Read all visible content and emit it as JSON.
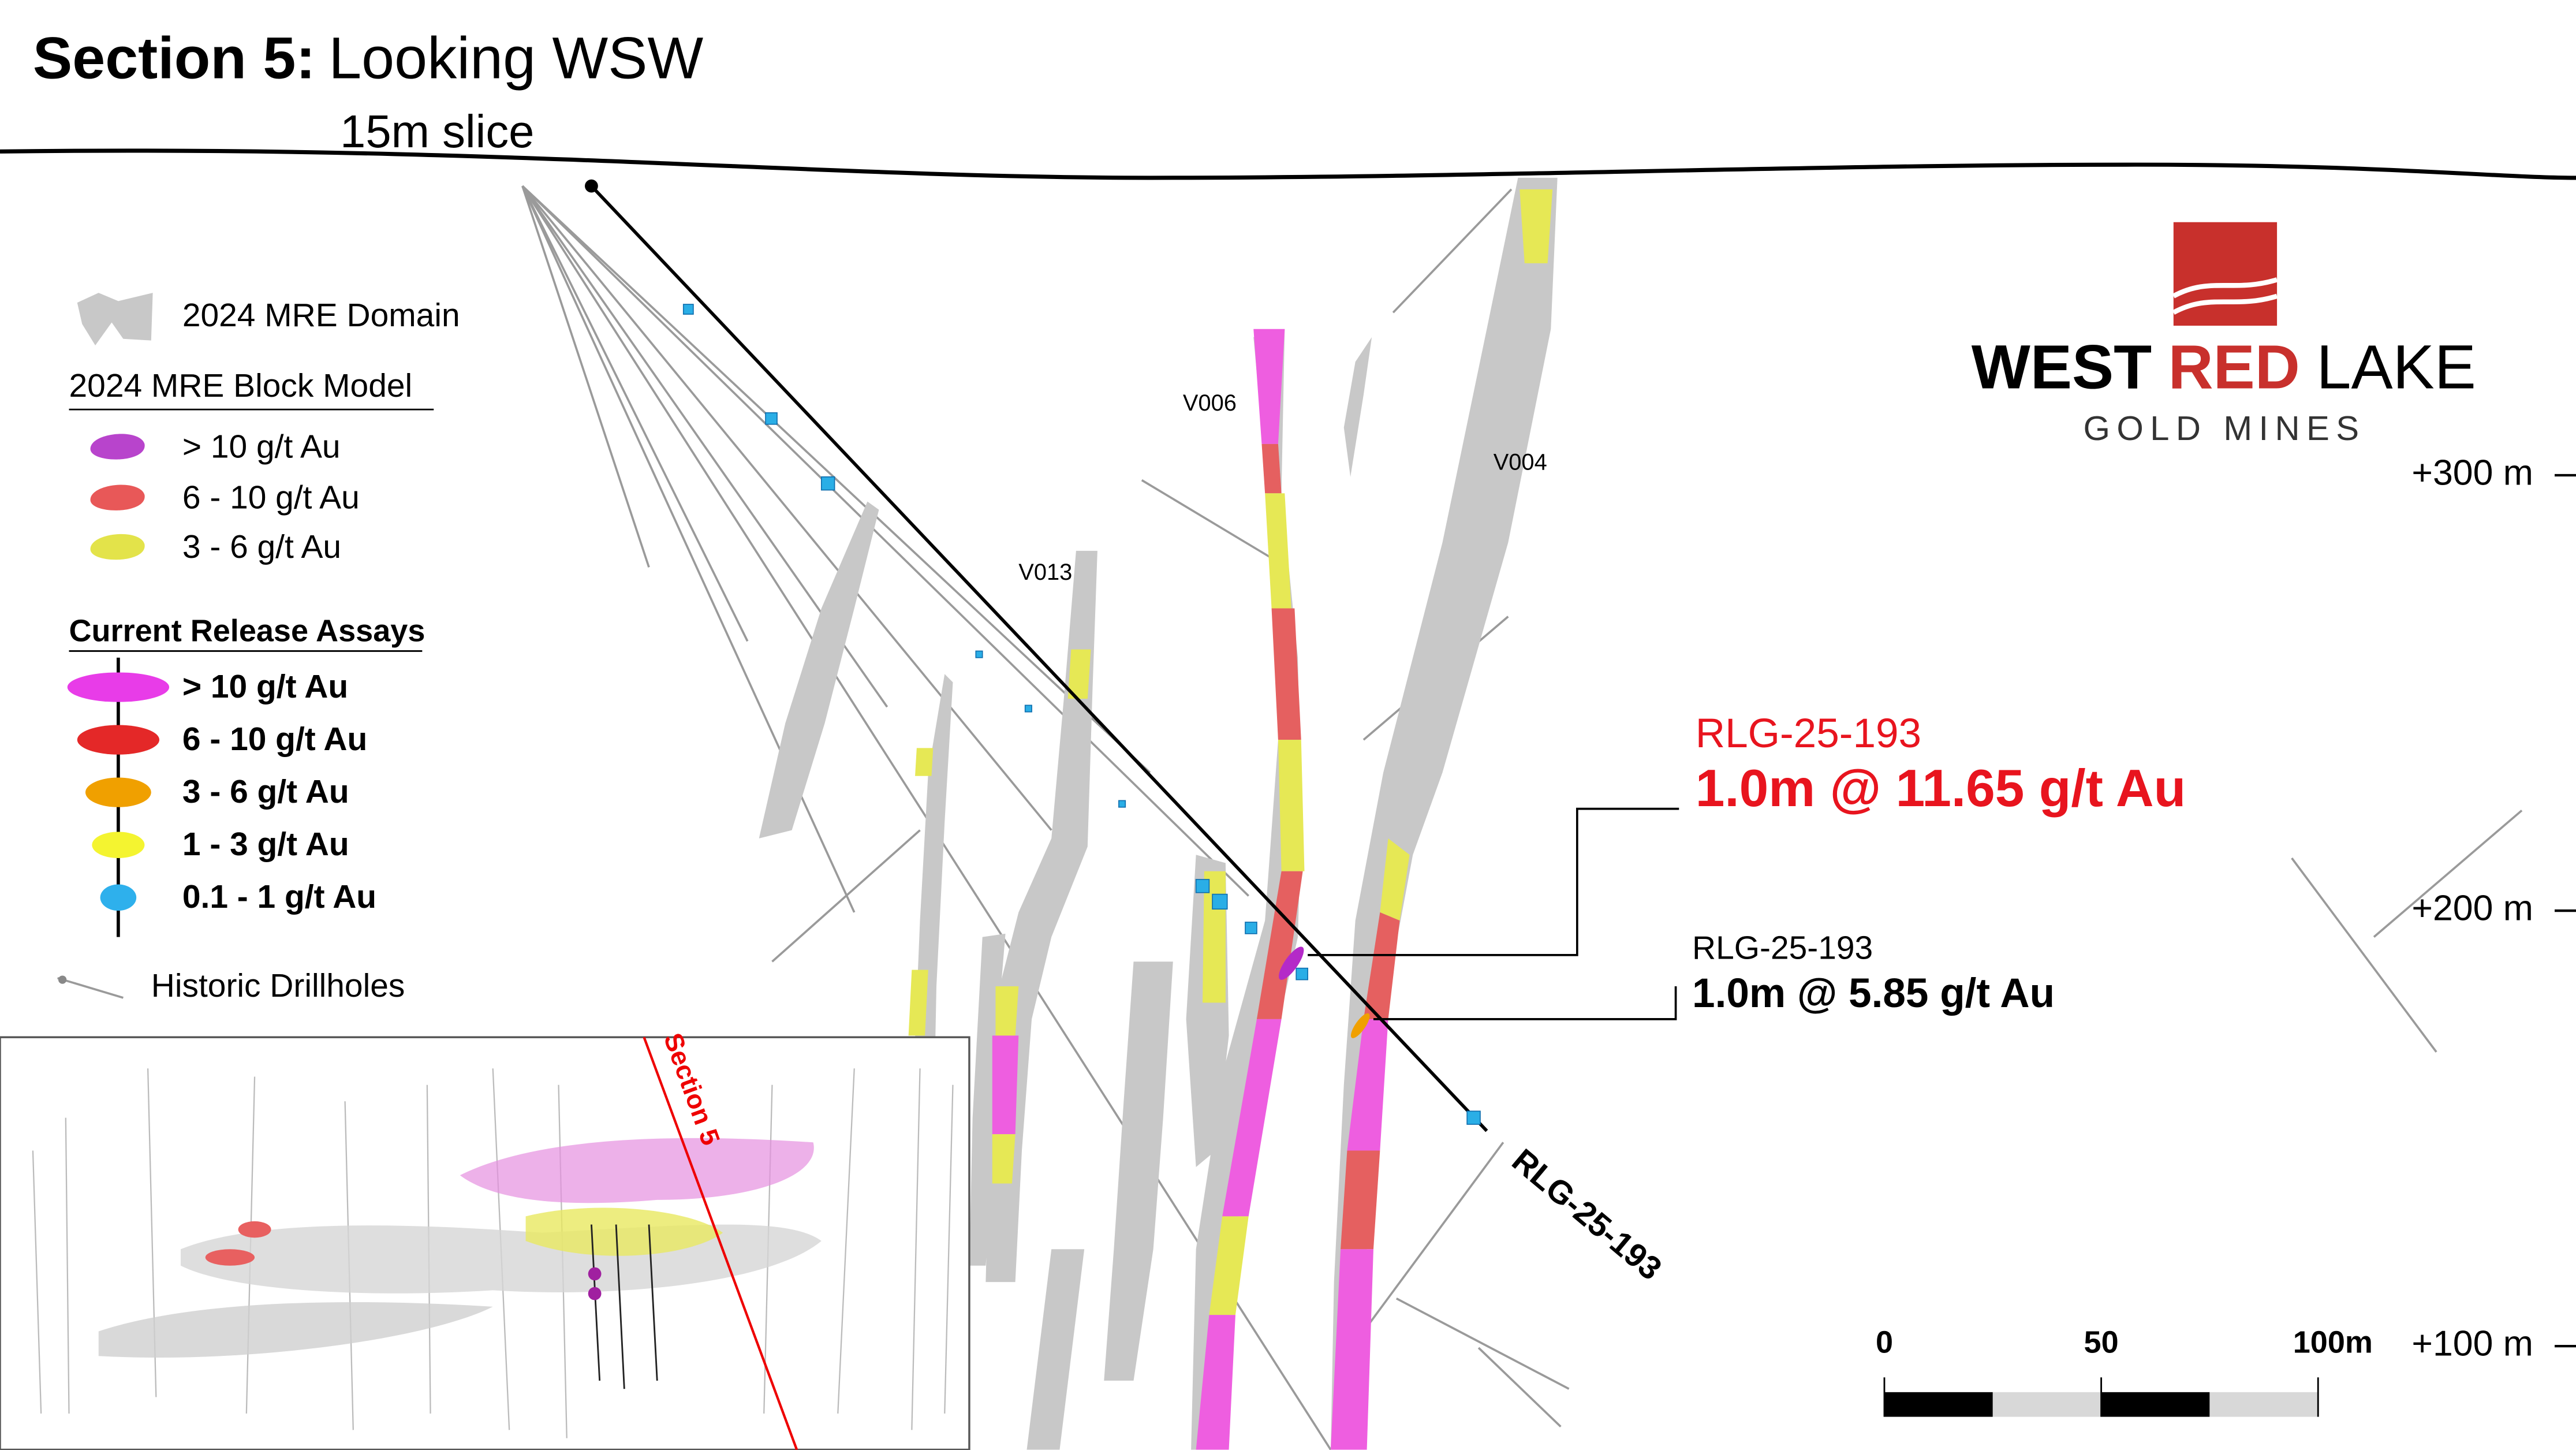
{
  "title": {
    "bold": "Section 5:",
    "rest": "Looking WSW"
  },
  "subtitle": "15m slice",
  "legend": {
    "domain": "2024 MRE Domain",
    "block_model": {
      "heading": "2024 MRE Block Model",
      "items": [
        "> 10 g/t Au",
        "6 - 10 g/t Au",
        "3 - 6 g/t Au"
      ]
    },
    "assays": {
      "heading": "Current Release Assays",
      "items": [
        "> 10 g/t Au",
        "6 - 10 g/t Au",
        "3 - 6 g/t Au",
        "1 - 3 g/t Au",
        "0.1 - 1 g/t Au"
      ]
    },
    "historic": "Historic Drillholes"
  },
  "veins": [
    "V006",
    "V004",
    "V013"
  ],
  "logo": {
    "west": "WEST",
    "red": "RED",
    "lake": "LAKE",
    "sub": "GOLD MINES"
  },
  "elevations": [
    "+300 m",
    "+200 m",
    "+100 m"
  ],
  "callouts": [
    {
      "hole": "RLG-25-193",
      "result": "1.0m @ 11.65 g/t Au"
    },
    {
      "hole": "RLG-25-193",
      "result": "1.0m @ 5.85 g/t Au"
    }
  ],
  "drillhole_label": "RLG-25-193",
  "inset_label": "Section 5",
  "scale_bar": [
    "0",
    "50",
    "100m"
  ]
}
